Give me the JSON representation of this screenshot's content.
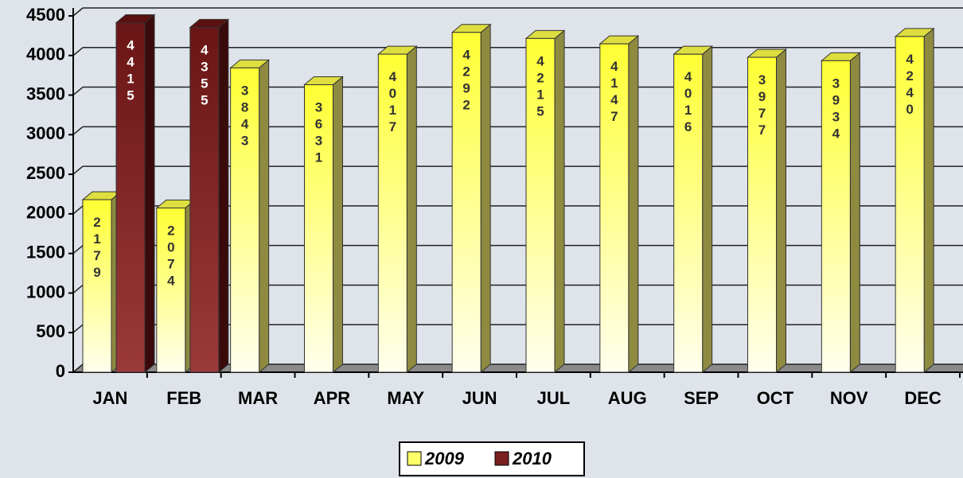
{
  "chart_data": {
    "type": "bar",
    "categories": [
      "JAN",
      "FEB",
      "MAR",
      "APR",
      "MAY",
      "JUN",
      "JUL",
      "AUG",
      "SEP",
      "OCT",
      "NOV",
      "DEC"
    ],
    "series": [
      {
        "name": "2009",
        "color": "#ffff66",
        "values": [
          2179,
          2074,
          3843,
          3631,
          4017,
          4292,
          4215,
          4147,
          4016,
          3977,
          3934,
          4240
        ]
      },
      {
        "name": "2010",
        "color": "#7a1f1f",
        "values": [
          4415,
          4355,
          null,
          null,
          null,
          null,
          null,
          null,
          null,
          null,
          null,
          null
        ]
      }
    ],
    "ylim": [
      0,
      4500
    ],
    "yticks": [
      0,
      500,
      1000,
      1500,
      2000,
      2500,
      3000,
      3500,
      4000,
      4500
    ],
    "grid": true,
    "legend": "bottom"
  }
}
